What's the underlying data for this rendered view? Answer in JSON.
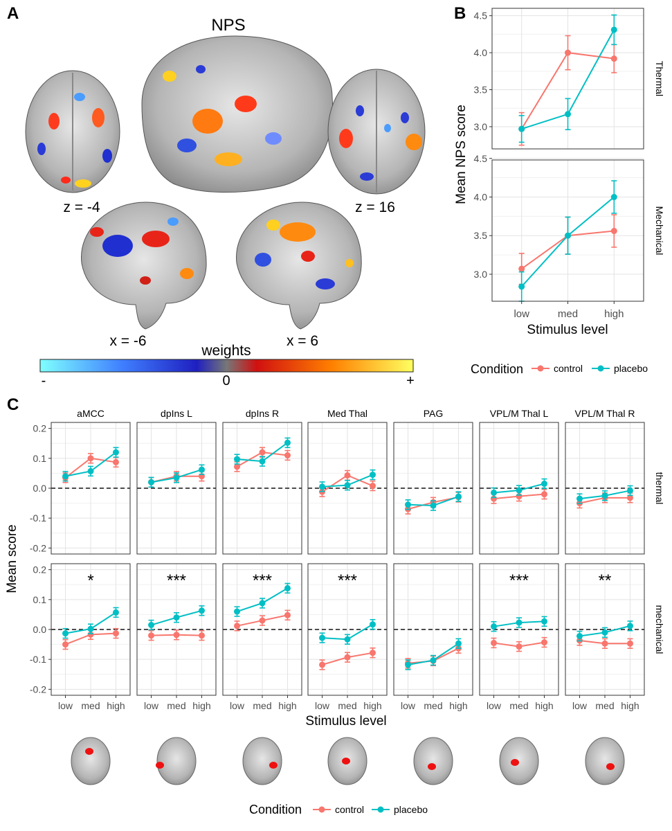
{
  "panel_a": {
    "letter": "A",
    "title": "NPS",
    "slice_labels": [
      "z = -4",
      "z = 16",
      "x = -6",
      "x = 6"
    ],
    "colorbar": {
      "title": "weights",
      "min_label": "-",
      "mid_label": "0",
      "max_label": "+"
    }
  },
  "panel_b": {
    "letter": "B"
  },
  "panel_c": {
    "letter": "C"
  },
  "colors": {
    "control": "#F8766D",
    "placebo": "#00BFC4"
  },
  "chart_data": [
    {
      "type": "line",
      "id": "B",
      "xlabel": "Stimulus level",
      "ylabel": "Mean NPS score",
      "categories": [
        "low",
        "med",
        "high"
      ],
      "facets": [
        {
          "label": "Thermal",
          "ylim": [
            2.7,
            4.6
          ],
          "yticks": [
            "3.0",
            "3.5",
            "4.0",
            "4.5"
          ],
          "series": [
            {
              "name": "control",
              "values": [
                2.97,
                4.0,
                3.92
              ],
              "errors": [
                0.22,
                0.23,
                0.19
              ]
            },
            {
              "name": "placebo",
              "values": [
                2.97,
                3.17,
                4.31
              ],
              "errors": [
                0.18,
                0.21,
                0.2
              ]
            }
          ]
        },
        {
          "label": "Mechanical",
          "ylim": [
            2.65,
            4.48
          ],
          "yticks": [
            "3.0",
            "3.5",
            "4.0",
            "4.5"
          ],
          "series": [
            {
              "name": "control",
              "values": [
                3.07,
                3.5,
                3.56
              ],
              "errors": [
                0.2,
                0.24,
                0.21
              ]
            },
            {
              "name": "placebo",
              "values": [
                2.84,
                3.5,
                4.0
              ],
              "errors": [
                0.19,
                0.24,
                0.21
              ]
            }
          ]
        }
      ],
      "legend": {
        "title": "Condition",
        "entries": [
          "control",
          "placebo"
        ],
        "position": "bottom"
      }
    },
    {
      "type": "line",
      "id": "C",
      "xlabel": "Stimulus level",
      "ylabel": "Mean score",
      "categories": [
        "low",
        "med",
        "high"
      ],
      "ylim": [
        -0.22,
        0.22
      ],
      "yticks": [
        "-0.2",
        "-0.1",
        "0.0",
        "0.1",
        "0.2"
      ],
      "reference_line": 0,
      "columns": [
        "aMCC",
        "dpIns L",
        "dpIns R",
        "Med Thal",
        "PAG",
        "VPL/M Thal L",
        "VPL/M Thal R"
      ],
      "rows": [
        "thermal",
        "mechanical"
      ],
      "significance": [
        "*",
        "***",
        "***",
        "***",
        "",
        "***",
        "**"
      ],
      "cells": {
        "thermal": [
          {
            "control": [
              0.035,
              0.1,
              0.087
            ],
            "placebo": [
              0.04,
              0.057,
              0.12
            ]
          },
          {
            "control": [
              0.02,
              0.04,
              0.04
            ],
            "placebo": [
              0.02,
              0.035,
              0.062
            ]
          },
          {
            "control": [
              0.072,
              0.12,
              0.11
            ],
            "placebo": [
              0.097,
              0.09,
              0.152
            ]
          },
          {
            "control": [
              -0.012,
              0.043,
              0.008
            ],
            "placebo": [
              0.005,
              0.01,
              0.045
            ]
          },
          {
            "control": [
              -0.07,
              -0.047,
              -0.03
            ],
            "placebo": [
              -0.055,
              -0.058,
              -0.028
            ]
          },
          {
            "control": [
              -0.035,
              -0.027,
              -0.02
            ],
            "placebo": [
              -0.015,
              -0.007,
              0.015
            ]
          },
          {
            "control": [
              -0.05,
              -0.032,
              -0.032
            ],
            "placebo": [
              -0.035,
              -0.025,
              -0.008
            ]
          }
        ],
        "mechanical": [
          {
            "control": [
              -0.05,
              -0.017,
              -0.013
            ],
            "placebo": [
              -0.013,
              0.002,
              0.057
            ]
          },
          {
            "control": [
              -0.02,
              -0.018,
              -0.02
            ],
            "placebo": [
              0.015,
              0.04,
              0.063
            ]
          },
          {
            "control": [
              0.012,
              0.03,
              0.048
            ],
            "placebo": [
              0.06,
              0.088,
              0.138
            ]
          },
          {
            "control": [
              -0.118,
              -0.093,
              -0.078
            ],
            "placebo": [
              -0.028,
              -0.033,
              0.017
            ]
          },
          {
            "control": [
              -0.113,
              -0.105,
              -0.063
            ],
            "placebo": [
              -0.118,
              -0.103,
              -0.047
            ]
          },
          {
            "control": [
              -0.045,
              -0.057,
              -0.043
            ],
            "placebo": [
              0.01,
              0.023,
              0.027
            ]
          },
          {
            "control": [
              -0.037,
              -0.047,
              -0.047
            ],
            "placebo": [
              -0.022,
              -0.01,
              0.012
            ]
          }
        ]
      },
      "error_bar": 0.016,
      "legend": {
        "title": "Condition",
        "entries": [
          "control",
          "placebo"
        ],
        "position": "bottom"
      }
    }
  ]
}
